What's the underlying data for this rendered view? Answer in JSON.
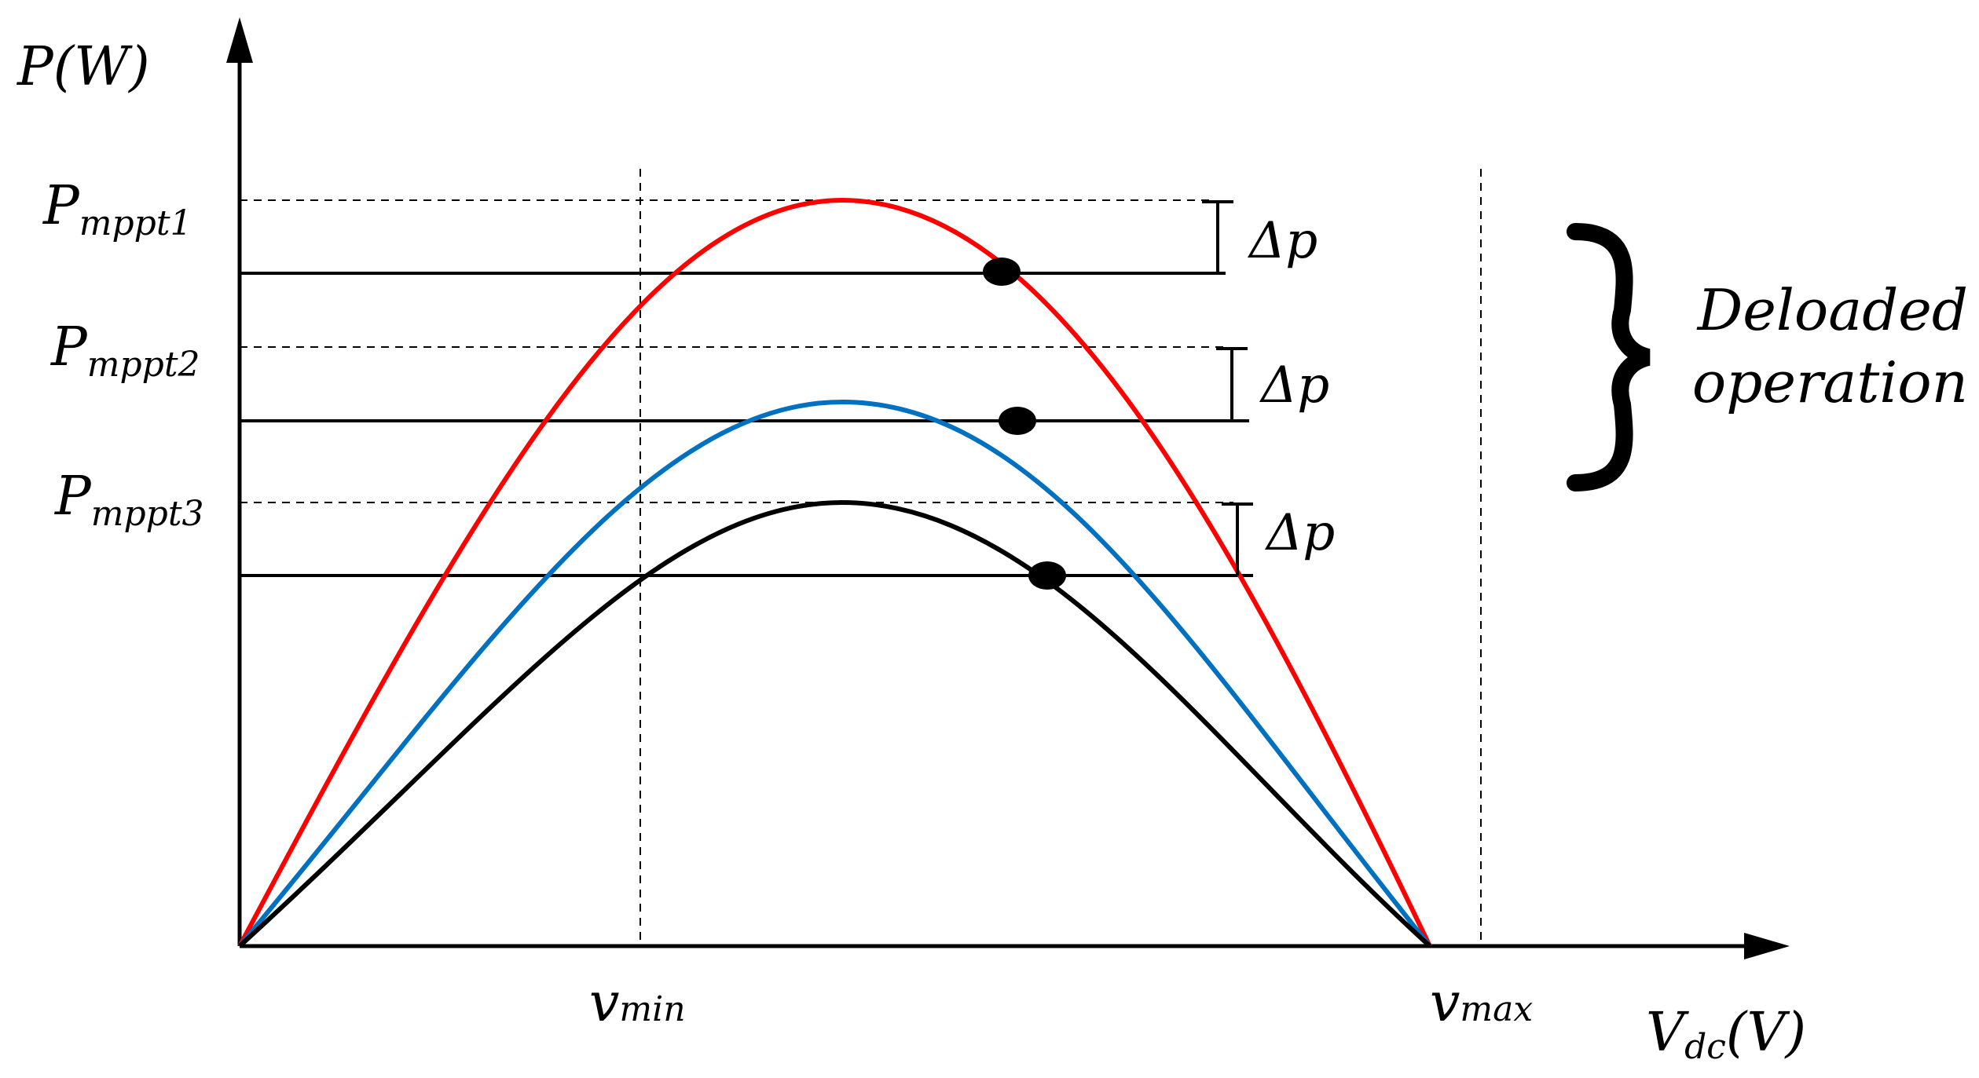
{
  "y_axis": {
    "label": "P(W)"
  },
  "x_axis": {
    "label_main": "V",
    "label_sub": "dc",
    "label_unit": "(V)"
  },
  "vmin": {
    "main": "v",
    "sub": "min"
  },
  "vmax": {
    "main": "v",
    "sub": "max"
  },
  "levels": [
    {
      "main": "P",
      "sub": "mppt1",
      "delta": "Δp",
      "color": "#ff0000"
    },
    {
      "main": "P",
      "sub": "mppt2",
      "delta": "Δp",
      "color": "#0070c0"
    },
    {
      "main": "P",
      "sub": "mppt3",
      "delta": "Δp",
      "color": "#000000"
    }
  ],
  "deloaded": {
    "line1": "Deloaded",
    "line2": "operation"
  }
}
